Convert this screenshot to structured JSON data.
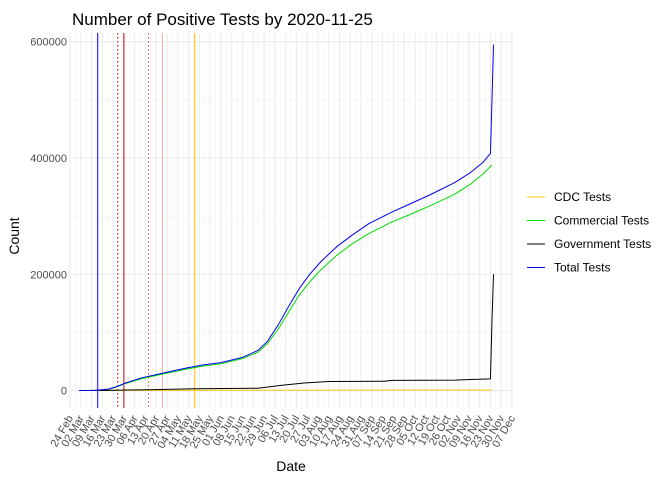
{
  "chart_data": {
    "type": "line",
    "title": "Number of Positive Tests by  2020-11-25",
    "xlabel": "Date",
    "ylabel": "Count",
    "ylim": [
      -30000,
      615000
    ],
    "xlim": [
      "2020-02-24",
      "2020-12-07"
    ],
    "yticks": [
      0,
      200000,
      400000,
      600000
    ],
    "ytick_labels": [
      "0",
      "200000",
      "400000",
      "600000"
    ],
    "xticks": [
      "2020-02-24",
      "2020-03-02",
      "2020-03-09",
      "2020-03-16",
      "2020-03-23",
      "2020-03-30",
      "2020-04-06",
      "2020-04-13",
      "2020-04-20",
      "2020-04-27",
      "2020-05-04",
      "2020-05-11",
      "2020-05-18",
      "2020-05-25",
      "2020-06-01",
      "2020-06-08",
      "2020-06-15",
      "2020-06-22",
      "2020-06-29",
      "2020-07-06",
      "2020-07-13",
      "2020-07-20",
      "2020-07-27",
      "2020-08-03",
      "2020-08-10",
      "2020-08-17",
      "2020-08-24",
      "2020-08-31",
      "2020-09-07",
      "2020-09-14",
      "2020-09-21",
      "2020-09-28",
      "2020-10-05",
      "2020-10-12",
      "2020-10-19",
      "2020-10-26",
      "2020-11-02",
      "2020-11-09",
      "2020-11-16",
      "2020-11-23",
      "2020-11-30",
      "2020-12-07"
    ],
    "xtick_labels": [
      "24 Feb",
      "02 Mar",
      "09 Mar",
      "16 Mar",
      "23 Mar",
      "30 Mar",
      "06 Apr",
      "13 Apr",
      "20 Apr",
      "27 Apr",
      "04 May",
      "11 May",
      "18 May",
      "25 May",
      "01 Jun",
      "08 Jun",
      "15 Jun",
      "22 Jun",
      "29 Jun",
      "06 Jul",
      "13 Jul",
      "20 Jul",
      "27 Jul",
      "03 Aug",
      "10 Aug",
      "17 Aug",
      "24 Aug",
      "31 Aug",
      "07 Sep",
      "14 Sep",
      "21 Sep",
      "28 Sep",
      "05 Oct",
      "12 Oct",
      "19 Oct",
      "26 Oct",
      "02 Nov",
      "09 Nov",
      "16 Nov",
      "23 Nov",
      "30 Nov",
      "07 Dec"
    ],
    "grid": true,
    "legend": {
      "placement": "right"
    },
    "series": [
      {
        "name": "CDC Tests",
        "color": "#ffc000",
        "points": [
          [
            "2020-03-01",
            0
          ],
          [
            "2020-03-20",
            300
          ],
          [
            "2020-11-24",
            800
          ]
        ]
      },
      {
        "name": "Commercial Tests",
        "color": "#00dd00",
        "points": [
          [
            "2020-03-01",
            0
          ],
          [
            "2020-03-10",
            100
          ],
          [
            "2020-03-20",
            2000
          ],
          [
            "2020-03-25",
            6000
          ],
          [
            "2020-03-31",
            12000
          ],
          [
            "2020-04-10",
            20000
          ],
          [
            "2020-04-25",
            29000
          ],
          [
            "2020-05-10",
            37000
          ],
          [
            "2020-05-20",
            42000
          ],
          [
            "2020-06-01",
            46000
          ],
          [
            "2020-06-15",
            55000
          ],
          [
            "2020-06-25",
            66000
          ],
          [
            "2020-07-01",
            80000
          ],
          [
            "2020-07-08",
            105000
          ],
          [
            "2020-07-15",
            135000
          ],
          [
            "2020-07-22",
            165000
          ],
          [
            "2020-07-29",
            188000
          ],
          [
            "2020-08-05",
            208000
          ],
          [
            "2020-08-15",
            232000
          ],
          [
            "2020-08-25",
            252000
          ],
          [
            "2020-09-05",
            270000
          ],
          [
            "2020-09-20",
            290000
          ],
          [
            "2020-10-01",
            302000
          ],
          [
            "2020-10-15",
            318000
          ],
          [
            "2020-10-31",
            338000
          ],
          [
            "2020-11-10",
            355000
          ],
          [
            "2020-11-18",
            372000
          ],
          [
            "2020-11-24",
            388000
          ]
        ]
      },
      {
        "name": "Government Tests",
        "color": "#000000",
        "points": [
          [
            "2020-03-01",
            0
          ],
          [
            "2020-03-20",
            400
          ],
          [
            "2020-04-15",
            1500
          ],
          [
            "2020-05-15",
            3000
          ],
          [
            "2020-06-25",
            4000
          ],
          [
            "2020-07-10",
            9000
          ],
          [
            "2020-07-25",
            13000
          ],
          [
            "2020-08-10",
            15500
          ],
          [
            "2020-09-15",
            16000
          ],
          [
            "2020-09-20",
            17500
          ],
          [
            "2020-10-31",
            18000
          ],
          [
            "2020-11-10",
            19000
          ],
          [
            "2020-11-23",
            20000
          ],
          [
            "2020-11-24",
            120000
          ],
          [
            "2020-11-25",
            200000
          ]
        ]
      },
      {
        "name": "Total Tests",
        "color": "#0000ee",
        "points": [
          [
            "2020-03-01",
            0
          ],
          [
            "2020-03-10",
            200
          ],
          [
            "2020-03-20",
            2500
          ],
          [
            "2020-03-25",
            6500
          ],
          [
            "2020-03-31",
            13000
          ],
          [
            "2020-04-10",
            21500
          ],
          [
            "2020-04-25",
            30500
          ],
          [
            "2020-05-10",
            39000
          ],
          [
            "2020-05-20",
            44000
          ],
          [
            "2020-06-01",
            48000
          ],
          [
            "2020-06-15",
            57000
          ],
          [
            "2020-06-25",
            69000
          ],
          [
            "2020-07-01",
            84000
          ],
          [
            "2020-07-08",
            112000
          ],
          [
            "2020-07-15",
            145000
          ],
          [
            "2020-07-22",
            176000
          ],
          [
            "2020-07-29",
            201000
          ],
          [
            "2020-08-05",
            222000
          ],
          [
            "2020-08-15",
            247000
          ],
          [
            "2020-08-25",
            267000
          ],
          [
            "2020-09-05",
            287000
          ],
          [
            "2020-09-20",
            307000
          ],
          [
            "2020-10-01",
            320000
          ],
          [
            "2020-10-15",
            337000
          ],
          [
            "2020-10-31",
            358000
          ],
          [
            "2020-11-10",
            375000
          ],
          [
            "2020-11-18",
            392000
          ],
          [
            "2020-11-23",
            408000
          ],
          [
            "2020-11-24",
            500000
          ],
          [
            "2020-11-25",
            595000
          ]
        ]
      }
    ],
    "vlines": [
      {
        "date": "2020-03-13",
        "color": "#0000ff",
        "style": "solid"
      },
      {
        "date": "2020-03-26",
        "color": "#aa0000",
        "style": "dotted"
      },
      {
        "date": "2020-03-30",
        "color": "#cc0000",
        "style": "solid"
      },
      {
        "date": "2020-04-15",
        "color": "#dd4444",
        "style": "dotted"
      },
      {
        "date": "2020-04-24",
        "color": "#ffaaaa",
        "style": "solid"
      },
      {
        "date": "2020-05-15",
        "color": "#ffc000",
        "style": "solid"
      }
    ]
  }
}
